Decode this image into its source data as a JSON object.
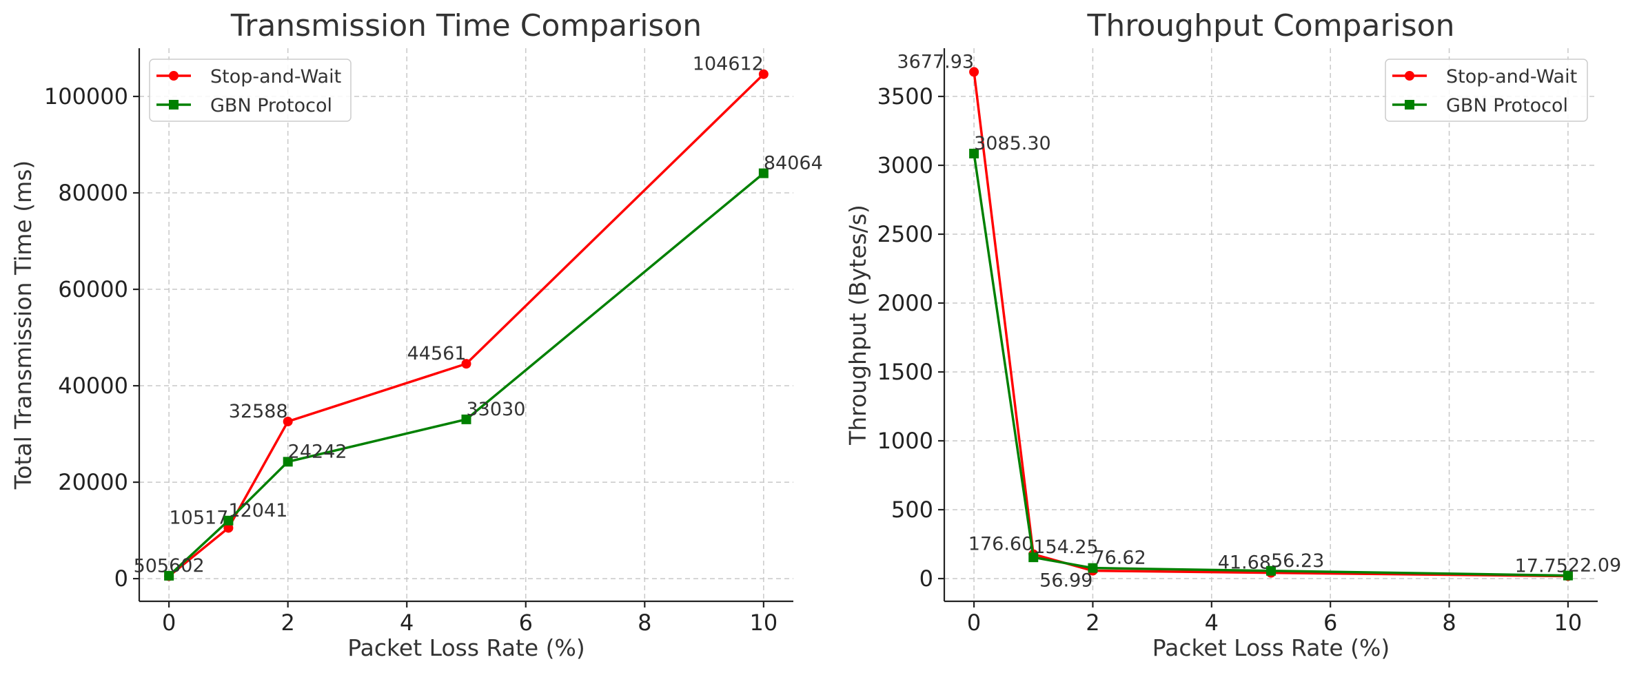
{
  "colors": {
    "stop_and_wait": "#ff0000",
    "gbn": "#008000"
  },
  "chart_data": [
    {
      "type": "line",
      "title": "Transmission Time Comparison",
      "xlabel": "Packet Loss Rate (%)",
      "ylabel": "Total Transmission Time (ms)",
      "x": [
        0,
        1,
        2,
        5,
        10
      ],
      "xlim": [
        -0.5,
        10.5
      ],
      "ylim": [
        -4700,
        110000
      ],
      "xticks": [
        0,
        2,
        4,
        6,
        8,
        10
      ],
      "xtick_labels": [
        "0",
        "2",
        "4",
        "6",
        "8",
        "10"
      ],
      "yticks": [
        0,
        20000,
        40000,
        60000,
        80000,
        100000
      ],
      "ytick_labels": [
        "0",
        "20000",
        "40000",
        "60000",
        "80000",
        "100000"
      ],
      "grid": true,
      "legend_position": "top-left",
      "series": [
        {
          "name": "Stop-and-Wait",
          "marker": "circle",
          "color": "#ff0000",
          "values": [
            505,
            10517,
            32588,
            44561,
            104612
          ],
          "labels": [
            "505",
            "10517",
            "32588",
            "44561",
            "104612"
          ]
        },
        {
          "name": "GBN Protocol",
          "marker": "square",
          "color": "#008000",
          "values": [
            602,
            12041,
            24242,
            33030,
            84064
          ],
          "labels": [
            "602",
            "12041",
            "24242",
            "33030",
            "84064"
          ]
        }
      ]
    },
    {
      "type": "line",
      "title": "Throughput Comparison",
      "xlabel": "Packet Loss Rate (%)",
      "ylabel": "Throughput (Bytes/s)",
      "x": [
        0,
        1,
        2,
        5,
        10
      ],
      "xlim": [
        -0.5,
        10.5
      ],
      "ylim": [
        -165,
        3850
      ],
      "xticks": [
        0,
        2,
        4,
        6,
        8,
        10
      ],
      "xtick_labels": [
        "0",
        "2",
        "4",
        "6",
        "8",
        "10"
      ],
      "yticks": [
        0,
        500,
        1000,
        1500,
        2000,
        2500,
        3000,
        3500
      ],
      "ytick_labels": [
        "0",
        "500",
        "1000",
        "1500",
        "2000",
        "2500",
        "3000",
        "3500"
      ],
      "grid": true,
      "legend_position": "top-right",
      "series": [
        {
          "name": "Stop-and-Wait",
          "marker": "circle",
          "color": "#ff0000",
          "values": [
            3677.93,
            176.6,
            56.99,
            41.68,
            17.75
          ],
          "labels": [
            "3677.93",
            "176.60",
            "56.99",
            "41.68",
            "17.75"
          ]
        },
        {
          "name": "GBN Protocol",
          "marker": "square",
          "color": "#008000",
          "values": [
            3085.3,
            154.25,
            76.62,
            56.23,
            22.09
          ],
          "labels": [
            "3085.30",
            "154.25",
            "76.62",
            "56.23",
            "22.09"
          ]
        }
      ]
    }
  ]
}
